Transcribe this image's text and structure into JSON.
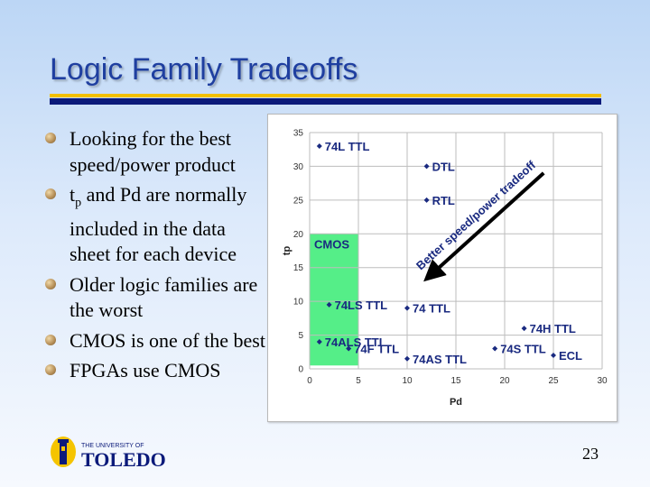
{
  "slide": {
    "title": "Logic Family Tradeoffs",
    "page_number": "23"
  },
  "bullets": [
    {
      "pre": "Looking for the best speed/power product",
      "sub": "",
      "post": ""
    },
    {
      "pre": "t",
      "sub": "p",
      "post": " and Pd are normally included in the data sheet for each device"
    },
    {
      "pre": "Older logic families are the worst",
      "sub": "",
      "post": ""
    },
    {
      "pre": "CMOS is one of the best",
      "sub": "",
      "post": ""
    },
    {
      "pre": "FPGAs use CMOS",
      "sub": "",
      "post": ""
    }
  ],
  "logo": {
    "line1": "THE UNIVERSITY OF",
    "line2": "TOLEDO"
  },
  "chart_data": {
    "type": "scatter",
    "xlabel": "Pd",
    "ylabel": "tp",
    "xlim": [
      0,
      30
    ],
    "ylim": [
      0,
      35
    ],
    "xticks": [
      0,
      5,
      10,
      15,
      20,
      25,
      30
    ],
    "yticks": [
      0,
      5,
      10,
      15,
      20,
      25,
      30,
      35
    ],
    "grid": true,
    "points": [
      {
        "label": "74L TTL",
        "x": 1,
        "y": 33,
        "label_side": "right"
      },
      {
        "label": "DTL",
        "x": 12,
        "y": 30,
        "label_side": "right"
      },
      {
        "label": "RTL",
        "x": 12,
        "y": 25,
        "label_side": "right"
      },
      {
        "label": "74LS TTL",
        "x": 2,
        "y": 9.5,
        "label_side": "right"
      },
      {
        "label": "74 TTL",
        "x": 10,
        "y": 9,
        "label_side": "right"
      },
      {
        "label": "74ALS TTL",
        "x": 1,
        "y": 4,
        "label_side": "right"
      },
      {
        "label": "74F TTL",
        "x": 4,
        "y": 3,
        "label_side": "right"
      },
      {
        "label": "74AS TTL",
        "x": 10,
        "y": 1.5,
        "label_side": "right"
      },
      {
        "label": "74H TTL",
        "x": 22,
        "y": 6,
        "label_side": "right"
      },
      {
        "label": "74S TTL",
        "x": 19,
        "y": 3,
        "label_side": "right"
      },
      {
        "label": "ECL",
        "x": 25,
        "y": 2,
        "label_side": "right"
      }
    ],
    "region": {
      "label": "CMOS",
      "x0": 0,
      "x1": 5,
      "y0": 0.5,
      "y1": 20,
      "color": "#55ee88"
    },
    "annotation": {
      "label": "Better speed/power tradeoff",
      "from": [
        24,
        29
      ],
      "to": [
        12.5,
        14
      ]
    },
    "colors": {
      "point": "#1a2a80",
      "arrow": "#000000"
    }
  }
}
